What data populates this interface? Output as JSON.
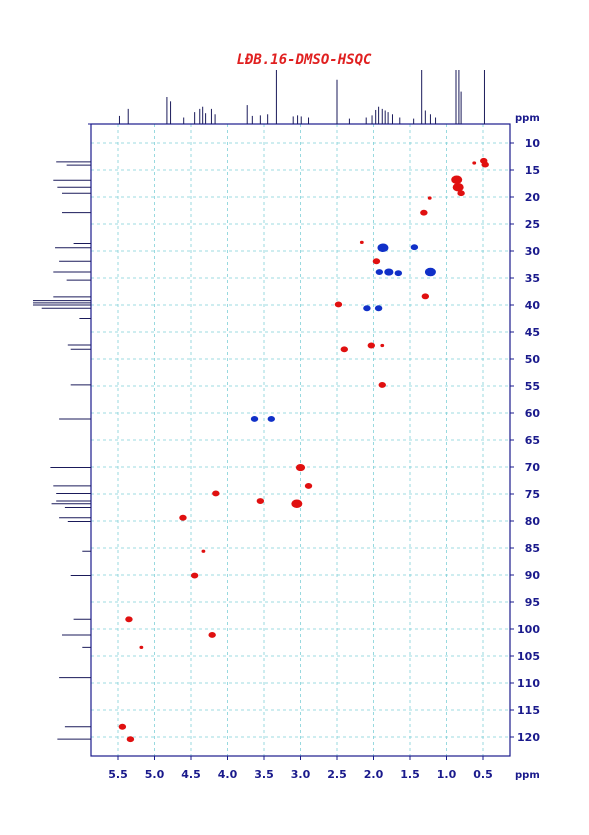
{
  "title": "LĐB.16-DMSO-HSQC",
  "colors": {
    "title": "#e02020",
    "axis": "#1a1a8c",
    "grid": "#7fd0d8",
    "spectrum": "#1a1a5a",
    "positive": "#e01010",
    "negative": "#1030c8"
  },
  "chart_data": {
    "type": "scatter",
    "title": "LĐB.16-DMSO-HSQC",
    "xlabel": "ppm",
    "ylabel": "ppm",
    "xlim": [
      5.9,
      0.35
    ],
    "ylim": [
      6.5,
      124
    ],
    "x_reversed": true,
    "grid": true,
    "x_ticks": [
      "5.5",
      "5.0",
      "4.5",
      "4.0",
      "3.5",
      "3.0",
      "2.5",
      "2.0",
      "1.5",
      "1.0",
      "0.5"
    ],
    "y_ticks": [
      "10",
      "15",
      "20",
      "25",
      "30",
      "35",
      "40",
      "45",
      "50",
      "55",
      "60",
      "65",
      "70",
      "75",
      "80",
      "85",
      "90",
      "95",
      "100",
      "105",
      "110",
      "115",
      "120"
    ],
    "series": [
      {
        "sign": "positive",
        "points": [
          {
            "x": 0.49,
            "y": 13.3,
            "s": 3
          },
          {
            "x": 0.47,
            "y": 14.0,
            "s": 3
          },
          {
            "x": 0.62,
            "y": 13.7,
            "s": 1
          },
          {
            "x": 0.86,
            "y": 16.8,
            "s": 5
          },
          {
            "x": 0.84,
            "y": 18.2,
            "s": 5
          },
          {
            "x": 0.8,
            "y": 19.3,
            "s": 3
          },
          {
            "x": 1.23,
            "y": 20.2,
            "s": 1
          },
          {
            "x": 1.31,
            "y": 22.9,
            "s": 3
          },
          {
            "x": 2.16,
            "y": 28.4,
            "s": 1
          },
          {
            "x": 1.96,
            "y": 31.9,
            "s": 3
          },
          {
            "x": 1.29,
            "y": 38.4,
            "s": 3
          },
          {
            "x": 2.48,
            "y": 39.9,
            "s": 3
          },
          {
            "x": 2.03,
            "y": 47.5,
            "s": 3
          },
          {
            "x": 1.88,
            "y": 47.5,
            "s": 1
          },
          {
            "x": 2.4,
            "y": 48.2,
            "s": 3
          },
          {
            "x": 1.88,
            "y": 54.8,
            "s": 3
          },
          {
            "x": 3.0,
            "y": 70.1,
            "s": 4
          },
          {
            "x": 2.89,
            "y": 73.5,
            "s": 3
          },
          {
            "x": 4.16,
            "y": 74.9,
            "s": 3
          },
          {
            "x": 3.55,
            "y": 76.3,
            "s": 3
          },
          {
            "x": 3.05,
            "y": 76.8,
            "s": 5
          },
          {
            "x": 4.61,
            "y": 79.4,
            "s": 3
          },
          {
            "x": 4.33,
            "y": 85.6,
            "s": 1
          },
          {
            "x": 4.45,
            "y": 90.1,
            "s": 3
          },
          {
            "x": 5.35,
            "y": 98.2,
            "s": 3
          },
          {
            "x": 4.21,
            "y": 101.1,
            "s": 3
          },
          {
            "x": 5.18,
            "y": 103.4,
            "s": 1
          },
          {
            "x": 5.44,
            "y": 118.1,
            "s": 3
          },
          {
            "x": 5.33,
            "y": 120.4,
            "s": 3
          }
        ]
      },
      {
        "sign": "negative",
        "points": [
          {
            "x": 1.87,
            "y": 29.4,
            "s": 5
          },
          {
            "x": 1.44,
            "y": 29.3,
            "s": 3
          },
          {
            "x": 1.92,
            "y": 33.9,
            "s": 3
          },
          {
            "x": 1.79,
            "y": 33.9,
            "s": 4
          },
          {
            "x": 1.66,
            "y": 34.1,
            "s": 3
          },
          {
            "x": 1.22,
            "y": 33.9,
            "s": 5
          },
          {
            "x": 2.09,
            "y": 40.6,
            "s": 3
          },
          {
            "x": 1.93,
            "y": 40.6,
            "s": 3
          },
          {
            "x": 3.63,
            "y": 61.1,
            "s": 3
          },
          {
            "x": 3.4,
            "y": 61.1,
            "s": 3
          }
        ]
      }
    ],
    "proton_projection": [
      {
        "x": 5.48,
        "h": 0.15
      },
      {
        "x": 5.36,
        "h": 0.28
      },
      {
        "x": 4.83,
        "h": 0.5
      },
      {
        "x": 4.78,
        "h": 0.42
      },
      {
        "x": 4.6,
        "h": 0.12
      },
      {
        "x": 4.45,
        "h": 0.22
      },
      {
        "x": 4.38,
        "h": 0.28
      },
      {
        "x": 4.34,
        "h": 0.32
      },
      {
        "x": 4.3,
        "h": 0.2
      },
      {
        "x": 4.22,
        "h": 0.28
      },
      {
        "x": 4.17,
        "h": 0.18
      },
      {
        "x": 3.73,
        "h": 0.35
      },
      {
        "x": 3.66,
        "h": 0.15
      },
      {
        "x": 3.55,
        "h": 0.16
      },
      {
        "x": 3.45,
        "h": 0.18
      },
      {
        "x": 3.33,
        "h": 1.0
      },
      {
        "x": 3.1,
        "h": 0.14
      },
      {
        "x": 3.04,
        "h": 0.16
      },
      {
        "x": 2.99,
        "h": 0.14
      },
      {
        "x": 2.89,
        "h": 0.12
      },
      {
        "x": 2.5,
        "h": 0.82
      },
      {
        "x": 2.33,
        "h": 0.1
      },
      {
        "x": 2.1,
        "h": 0.12
      },
      {
        "x": 2.02,
        "h": 0.16
      },
      {
        "x": 1.97,
        "h": 0.26
      },
      {
        "x": 1.93,
        "h": 0.32
      },
      {
        "x": 1.88,
        "h": 0.28
      },
      {
        "x": 1.84,
        "h": 0.25
      },
      {
        "x": 1.8,
        "h": 0.22
      },
      {
        "x": 1.74,
        "h": 0.18
      },
      {
        "x": 1.64,
        "h": 0.12
      },
      {
        "x": 1.45,
        "h": 0.1
      },
      {
        "x": 1.34,
        "h": 1.0
      },
      {
        "x": 1.29,
        "h": 0.25
      },
      {
        "x": 1.22,
        "h": 0.18
      },
      {
        "x": 1.15,
        "h": 0.12
      },
      {
        "x": 0.87,
        "h": 1.0
      },
      {
        "x": 0.83,
        "h": 1.0
      },
      {
        "x": 0.8,
        "h": 0.6
      },
      {
        "x": 0.48,
        "h": 1.0
      }
    ],
    "carbon_projection": [
      {
        "y": 13.5,
        "h": 0.6
      },
      {
        "y": 14.1,
        "h": 0.42
      },
      {
        "y": 16.9,
        "h": 0.65
      },
      {
        "y": 18.2,
        "h": 0.58
      },
      {
        "y": 19.3,
        "h": 0.5
      },
      {
        "y": 22.9,
        "h": 0.5
      },
      {
        "y": 28.6,
        "h": 0.3
      },
      {
        "y": 29.4,
        "h": 0.62
      },
      {
        "y": 31.9,
        "h": 0.55
      },
      {
        "y": 33.9,
        "h": 0.65
      },
      {
        "y": 35.4,
        "h": 0.42
      },
      {
        "y": 38.5,
        "h": 0.65
      },
      {
        "y": 39.2,
        "h": 1.0
      },
      {
        "y": 39.6,
        "h": 1.0
      },
      {
        "y": 40.0,
        "h": 1.0
      },
      {
        "y": 40.6,
        "h": 0.85
      },
      {
        "y": 42.5,
        "h": 0.2
      },
      {
        "y": 47.4,
        "h": 0.4
      },
      {
        "y": 48.2,
        "h": 0.35
      },
      {
        "y": 54.8,
        "h": 0.35
      },
      {
        "y": 61.1,
        "h": 0.55
      },
      {
        "y": 70.1,
        "h": 0.7
      },
      {
        "y": 73.5,
        "h": 0.65
      },
      {
        "y": 74.9,
        "h": 0.6
      },
      {
        "y": 76.3,
        "h": 0.6
      },
      {
        "y": 76.8,
        "h": 0.68
      },
      {
        "y": 77.5,
        "h": 0.45
      },
      {
        "y": 79.4,
        "h": 0.55
      },
      {
        "y": 80.1,
        "h": 0.4
      },
      {
        "y": 85.6,
        "h": 0.15
      },
      {
        "y": 90.1,
        "h": 0.35
      },
      {
        "y": 98.2,
        "h": 0.3
      },
      {
        "y": 101.1,
        "h": 0.5
      },
      {
        "y": 103.4,
        "h": 0.15
      },
      {
        "y": 109.0,
        "h": 0.55
      },
      {
        "y": 118.1,
        "h": 0.45
      },
      {
        "y": 120.4,
        "h": 0.58
      }
    ]
  }
}
